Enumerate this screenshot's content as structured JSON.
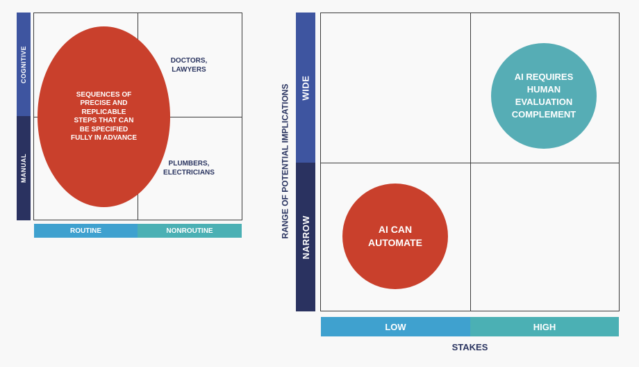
{
  "left_matrix": {
    "y_bands": {
      "top": "COGNITIVE",
      "bottom": "MANUAL"
    },
    "x_bands": {
      "left": "ROUTINE",
      "right": "NONROUTINE"
    },
    "ellipse_text": "SEQUENCES OF PRECISE AND REPLICABLE STEPS THAT CAN BE SPECIFIED FULLY IN ADVANCE",
    "top_right_text": "DOCTORS, LAWYERS",
    "bottom_right_text": "PLUMBERS, ELECTRICIANS"
  },
  "right_matrix": {
    "y_axis_title": "RANGE OF POTENTIAL IMPLICATIONS",
    "y_bands": {
      "top": "WIDE",
      "bottom": "NARROW"
    },
    "x_bands": {
      "left": "LOW",
      "right": "HIGH"
    },
    "x_axis_title": "STAKES",
    "top_right_circle": "AI REQUIRES HUMAN EVALUATION COMPLEMENT",
    "bottom_left_circle": "AI CAN AUTOMATE"
  },
  "colors": {
    "navy_dark": "#2a3260",
    "navy_light": "#3e55a0",
    "blue_bar": "#3fa1cf",
    "teal_bar": "#4bb0b4",
    "red": "#c9402c",
    "teal_circle": "#56adb5"
  }
}
